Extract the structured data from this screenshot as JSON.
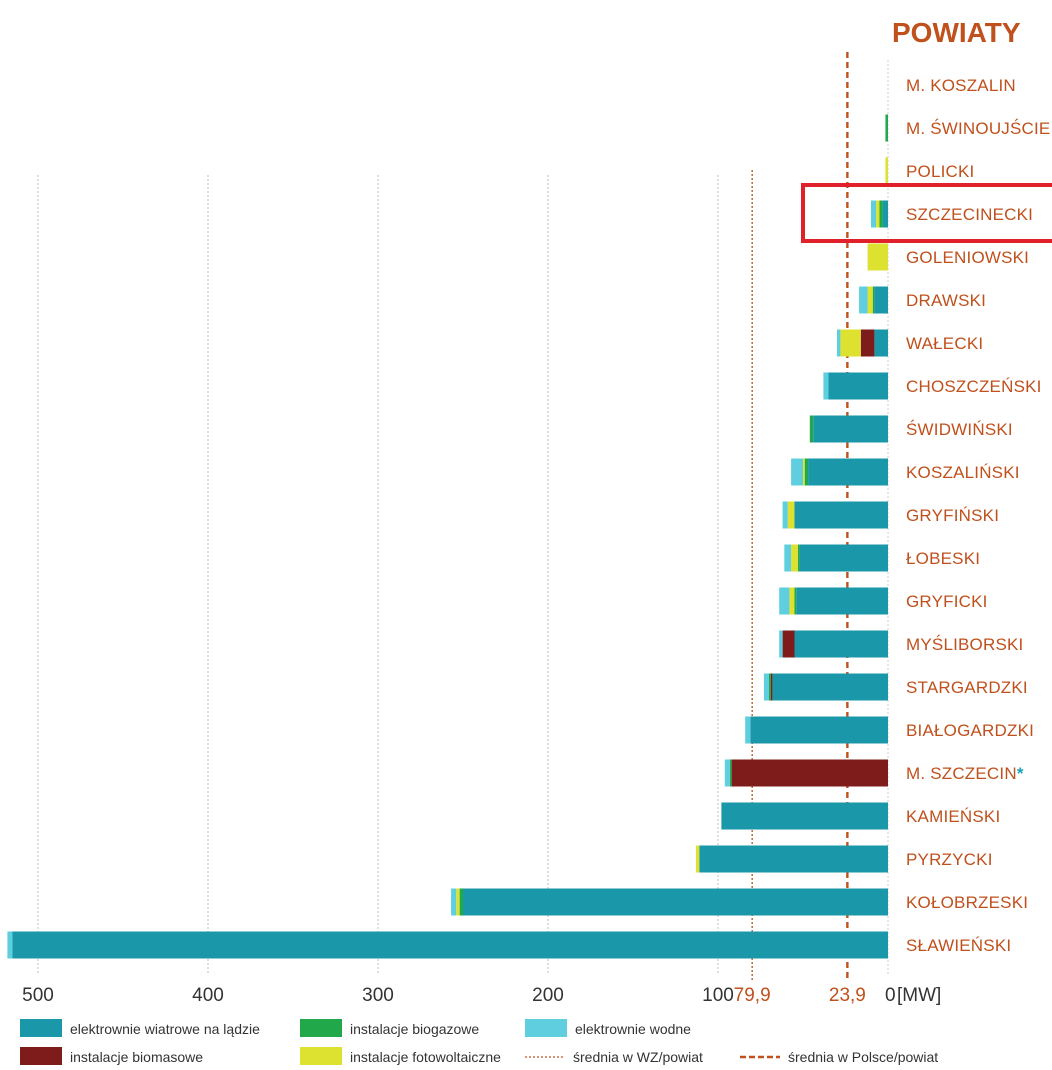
{
  "chart_data": {
    "type": "bar",
    "orientation": "horizontal",
    "title": "POWIATY",
    "unit_label": "[MW]",
    "x_ticks": [
      "500",
      "400",
      "300",
      "200",
      "100",
      "0"
    ],
    "x_tick_values": [
      500,
      400,
      300,
      200,
      100,
      0
    ],
    "xlim": [
      0,
      520
    ],
    "x_reversed": true,
    "grid": true,
    "highlighted_category": "SZCZECINECKI",
    "highlight_color": "#e0202a",
    "categories": [
      "M. KOSZALIN",
      "M. ŚWINOUJŚCIE",
      "POLICKI",
      "SZCZECINECKI",
      "GOLENIOWSKI",
      "DRAWSKI",
      "WAŁECKI",
      "CHOSZCZEŃSKI",
      "ŚWIDWIŃSKI",
      "KOSZALIŃSKI",
      "GRYFIŃSKI",
      "ŁOBESKI",
      "GRYFICKI",
      "MYŚLIBORSKI",
      "STARGARDZKI",
      "BIAŁOGARDZKI",
      "M. SZCZECIN",
      "KAMIEŃSKI",
      "PYRZYCKI",
      "KOŁOBRZESKI",
      "SŁAWIEŃSKI"
    ],
    "category_suffix": {
      "M. SZCZECIN": "*"
    },
    "series": [
      {
        "name": "elektrownie wiatrowe na lądzie",
        "color": "#1a97a8",
        "values": [
          0,
          0,
          0,
          3,
          0,
          8,
          8,
          35,
          44,
          47,
          55,
          52,
          54,
          55,
          68,
          81,
          0,
          98,
          111,
          250,
          515
        ]
      },
      {
        "name": "instalacje biomasowe",
        "color": "#7d1c1a",
        "values": [
          0,
          0,
          0,
          0,
          0,
          0,
          8,
          0,
          0,
          0,
          0,
          0,
          0,
          7,
          1,
          0,
          92,
          0,
          0,
          0,
          0
        ]
      },
      {
        "name": "instalacje biogazowe",
        "color": "#20a84a",
        "values": [
          0,
          1.5,
          0,
          2,
          0,
          1,
          0,
          0,
          2,
          2,
          0,
          1,
          1,
          0,
          1,
          0,
          1,
          0,
          0,
          2,
          0
        ]
      },
      {
        "name": "instalacje fotowoltaiczne",
        "color": "#dde230",
        "values": [
          0,
          0,
          1.5,
          2,
          12,
          3,
          12,
          0,
          0,
          1,
          4,
          4,
          3,
          0,
          0,
          0,
          0,
          0,
          2,
          2,
          0
        ]
      },
      {
        "name": "elektrownie wodne",
        "color": "#5fcfdf",
        "values": [
          0,
          0,
          0,
          3,
          0,
          5,
          2,
          3,
          0,
          7,
          3,
          4,
          6,
          2,
          3,
          3,
          3,
          0,
          0,
          3,
          3
        ]
      }
    ],
    "reference_lines": [
      {
        "name": "średnia w WZ/powiat",
        "value": 79.9,
        "label": "79,9",
        "color": "#c0501c",
        "style": "dotted"
      },
      {
        "name": "średnia w Polsce/powiat",
        "value": 23.9,
        "label": "23,9",
        "color": "#c0501c",
        "style": "dashed"
      }
    ],
    "legend": {
      "placement": "bottom",
      "items": [
        {
          "label": "elektrownie wiatrowe na lądzie",
          "type": "box",
          "color": "#1a97a8"
        },
        {
          "label": "instalacje biogazowe",
          "type": "box",
          "color": "#20a84a"
        },
        {
          "label": "elektrownie wodne",
          "type": "box",
          "color": "#5fcfdf"
        },
        {
          "label": "instalacje biomasowe",
          "type": "box",
          "color": "#7d1c1a"
        },
        {
          "label": "instalacje fotowoltaiczne",
          "type": "box",
          "color": "#dde230"
        },
        {
          "label": "średnia w WZ/powiat",
          "type": "dotted-line",
          "color": "#c0501c"
        },
        {
          "label": "średnia w Polsce/powiat",
          "type": "dashed-line",
          "color": "#c0501c"
        }
      ]
    }
  }
}
